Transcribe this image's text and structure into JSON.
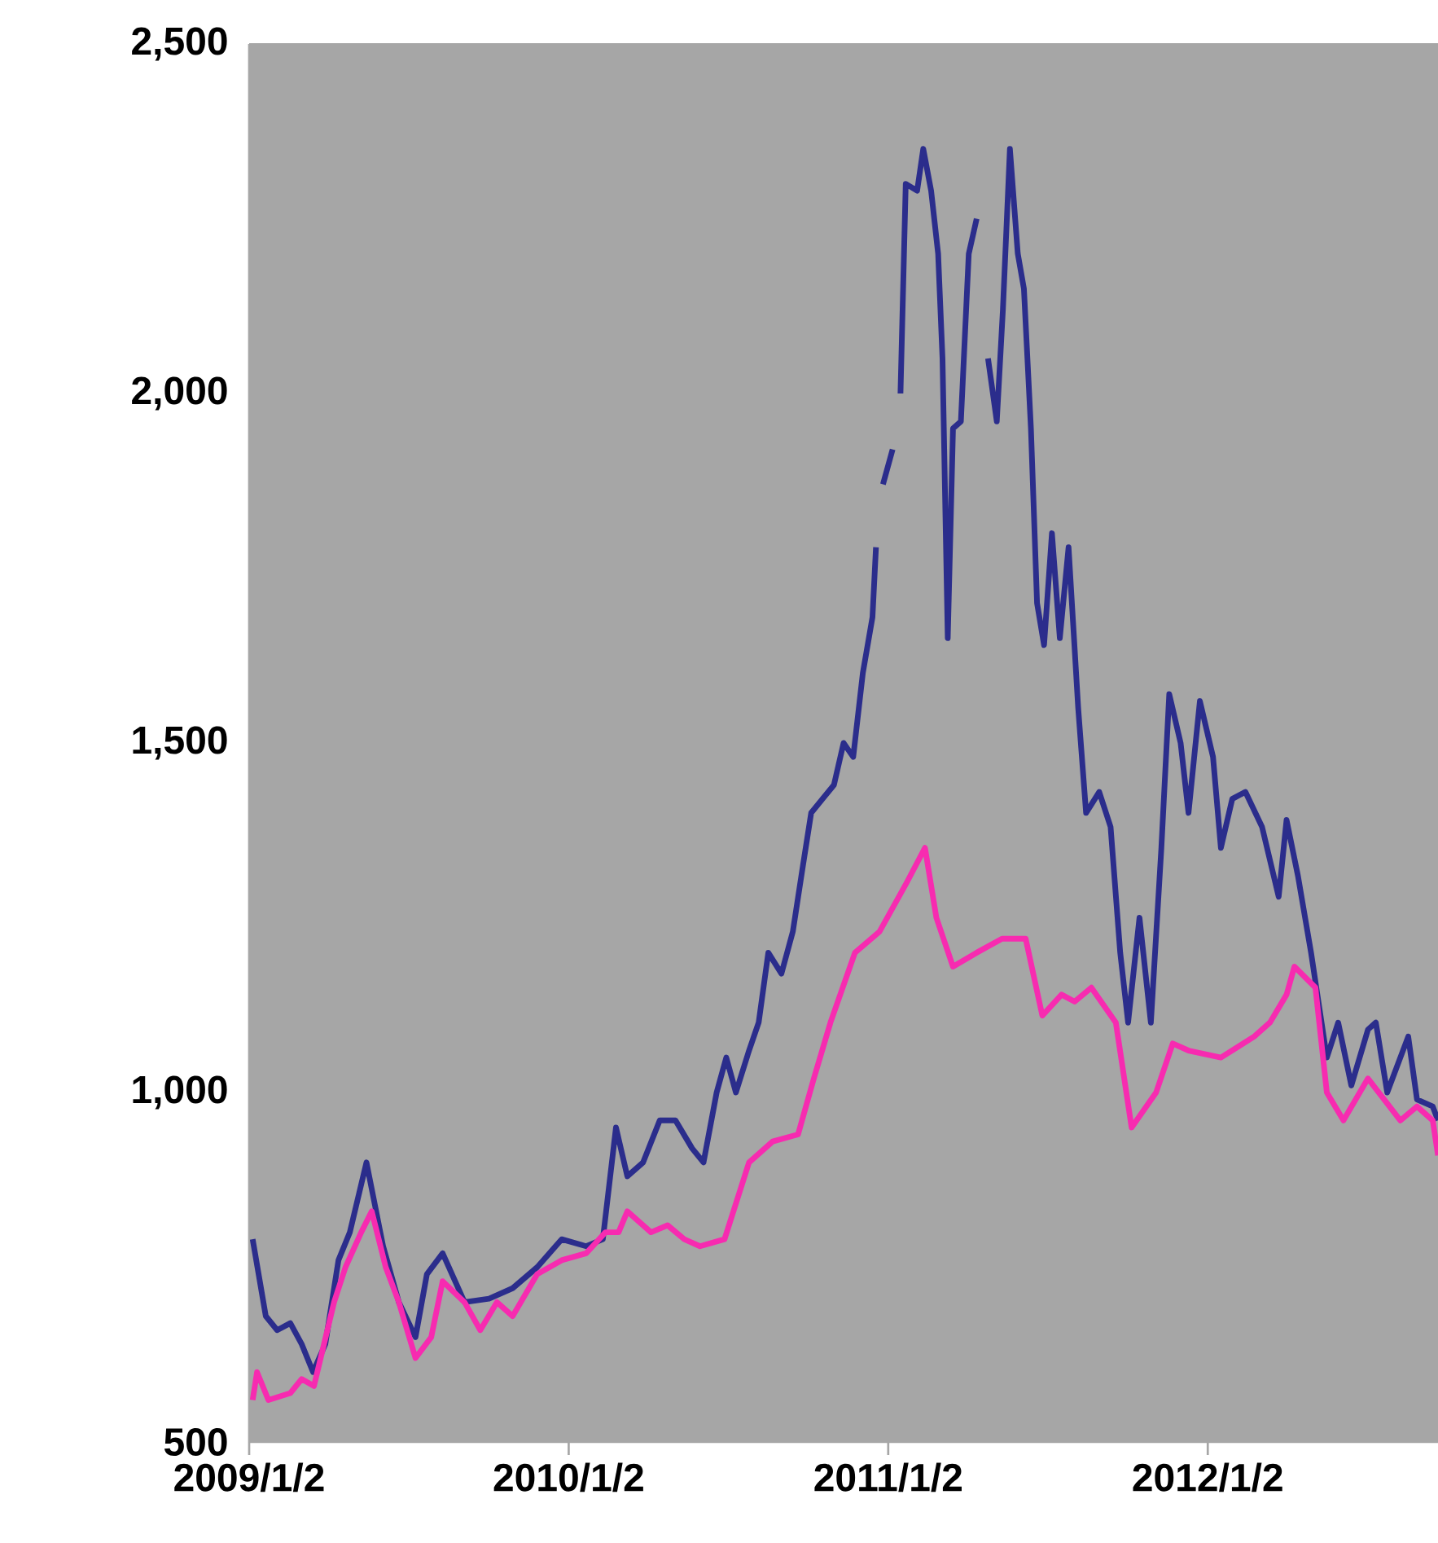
{
  "chart_data": {
    "type": "line",
    "xlim": [
      "2009-01-02",
      "2012-09-21"
    ],
    "xticks": [
      {
        "value": "2009-01-02",
        "label": "2009/1/2"
      },
      {
        "value": "2010-01-02",
        "label": "2010/1/2"
      },
      {
        "value": "2011-01-02",
        "label": "2011/1/2"
      },
      {
        "value": "2012-01-02",
        "label": "2012/1/2"
      }
    ],
    "ylim": [
      500,
      2500
    ],
    "yticks": [
      {
        "value": 500,
        "label": "500"
      },
      {
        "value": 1000,
        "label": "1,000"
      },
      {
        "value": 1500,
        "label": "1,500"
      },
      {
        "value": 2000,
        "label": "2,000"
      },
      {
        "value": 2500,
        "label": "2,500"
      }
    ],
    "grid": "y",
    "line_style": "solid",
    "marker": "none",
    "series": [
      {
        "color": "#2b2d8c",
        "x": [
          "2009-01-06",
          "2009-01-21",
          "2009-02-03",
          "2009-02-18",
          "2009-03-03",
          "2009-03-16",
          "2009-03-30",
          "2009-04-14",
          "2009-04-27",
          "2009-05-16",
          "2009-06-04",
          "2009-06-22",
          "2009-07-11",
          "2009-07-24",
          "2009-08-11",
          "2009-09-05",
          "2009-10-03",
          "2009-10-30",
          "2009-11-27",
          "2009-12-25",
          "2010-01-22",
          "2010-02-10",
          "2010-02-25",
          "2010-03-10",
          "2010-03-28",
          "2010-04-16",
          "2010-05-04",
          "2010-05-23",
          "2010-06-05",
          "2010-06-20",
          "2010-07-01",
          "2010-07-12",
          "2010-07-27",
          "2010-08-07",
          "2010-08-18",
          "2010-09-02",
          "2010-09-15",
          "2010-09-26",
          "2010-10-06",
          "2010-10-19",
          "2010-11-01",
          "2010-11-12",
          "2010-11-23",
          "2010-12-04",
          "2010-12-15",
          "2010-12-19",
          "2010-12-22",
          "2010-12-27",
          "2011-01-07",
          "2011-01-12",
          "2011-01-16",
          "2011-01-22",
          "2011-02-04",
          "2011-02-11",
          "2011-02-20",
          "2011-02-28",
          "2011-03-05",
          "2011-03-11",
          "2011-03-17",
          "2011-03-26",
          "2011-04-04",
          "2011-04-13",
          "2011-04-20",
          "2011-04-26",
          "2011-05-06",
          "2011-05-13",
          "2011-05-21",
          "2011-05-30",
          "2011-06-06",
          "2011-06-14",
          "2011-06-21",
          "2011-06-29",
          "2011-07-08",
          "2011-07-17",
          "2011-07-27",
          "2011-08-07",
          "2011-08-16",
          "2011-08-31",
          "2011-09-13",
          "2011-09-24",
          "2011-10-03",
          "2011-10-16",
          "2011-10-29",
          "2011-11-10",
          "2011-11-19",
          "2011-12-02",
          "2011-12-11",
          "2011-12-24",
          "2012-01-08",
          "2012-01-17",
          "2012-01-30",
          "2012-02-14",
          "2012-03-04",
          "2012-03-23",
          "2012-04-01",
          "2012-04-14",
          "2012-04-29",
          "2012-05-17",
          "2012-05-30",
          "2012-06-14",
          "2012-07-03",
          "2012-07-12",
          "2012-07-25",
          "2012-08-18",
          "2012-08-28",
          "2012-09-15",
          "2012-09-21"
        ],
        "values": [
          790,
          680,
          660,
          670,
          640,
          600,
          640,
          760,
          800,
          900,
          780,
          700,
          650,
          740,
          770,
          700,
          705,
          720,
          750,
          790,
          780,
          790,
          950,
          880,
          900,
          960,
          960,
          920,
          900,
          1000,
          1050,
          1000,
          1060,
          1100,
          1200,
          1170,
          1230,
          1320,
          1400,
          1420,
          1440,
          1500,
          1480,
          1600,
          1680,
          1780,
          null,
          1870,
          1920,
          null,
          2000,
          2300,
          2290,
          2350,
          2290,
          2200,
          2050,
          1650,
          1950,
          1960,
          2200,
          2250,
          null,
          2050,
          1960,
          2120,
          2350,
          2200,
          2150,
          1950,
          1700,
          1640,
          1800,
          1650,
          1780,
          1550,
          1400,
          1430,
          1380,
          1200,
          1100,
          1250,
          1100,
          1350,
          1570,
          1500,
          1400,
          1560,
          1480,
          1350,
          1420,
          1430,
          1380,
          1280,
          1390,
          1310,
          1200,
          1050,
          1100,
          1010,
          1090,
          1100,
          1000,
          1080,
          990,
          980,
          960
        ]
      },
      {
        "color": "#f72bb0",
        "x": [
          "2009-01-06",
          "2009-01-11",
          "2009-01-24",
          "2009-02-18",
          "2009-03-03",
          "2009-03-17",
          "2009-04-09",
          "2009-04-22",
          "2009-05-10",
          "2009-05-22",
          "2009-06-07",
          "2009-06-22",
          "2009-07-11",
          "2009-07-29",
          "2009-08-11",
          "2009-09-05",
          "2009-09-23",
          "2009-10-12",
          "2009-10-30",
          "2009-11-27",
          "2009-12-25",
          "2010-01-22",
          "2010-02-13",
          "2010-02-28",
          "2010-03-10",
          "2010-04-06",
          "2010-04-25",
          "2010-05-14",
          "2010-06-01",
          "2010-06-29",
          "2010-07-27",
          "2010-08-23",
          "2010-09-21",
          "2010-10-09",
          "2010-10-28",
          "2010-11-25",
          "2010-12-23",
          "2011-01-23",
          "2011-02-13",
          "2011-02-26",
          "2011-03-17",
          "2011-04-13",
          "2011-05-12",
          "2011-06-08",
          "2011-06-27",
          "2011-07-19",
          "2011-08-03",
          "2011-08-22",
          "2011-09-19",
          "2011-10-07",
          "2011-11-04",
          "2011-11-23",
          "2011-12-11",
          "2012-01-17",
          "2012-02-24",
          "2012-03-13",
          "2012-04-01",
          "2012-04-10",
          "2012-05-04",
          "2012-05-17",
          "2012-06-05",
          "2012-07-03",
          "2012-08-09",
          "2012-08-28",
          "2012-09-15",
          "2012-09-21"
        ],
        "values": [
          560,
          600,
          560,
          570,
          590,
          580,
          700,
          750,
          800,
          830,
          750,
          700,
          620,
          650,
          730,
          700,
          660,
          700,
          680,
          740,
          760,
          770,
          800,
          800,
          830,
          800,
          810,
          790,
          780,
          790,
          900,
          930,
          940,
          1020,
          1100,
          1200,
          1230,
          1300,
          1350,
          1250,
          1180,
          1200,
          1220,
          1220,
          1110,
          1140,
          1130,
          1150,
          1100,
          950,
          1000,
          1070,
          1060,
          1050,
          1080,
          1100,
          1140,
          1180,
          1150,
          1000,
          960,
          1020,
          960,
          980,
          960,
          910
        ]
      }
    ]
  }
}
